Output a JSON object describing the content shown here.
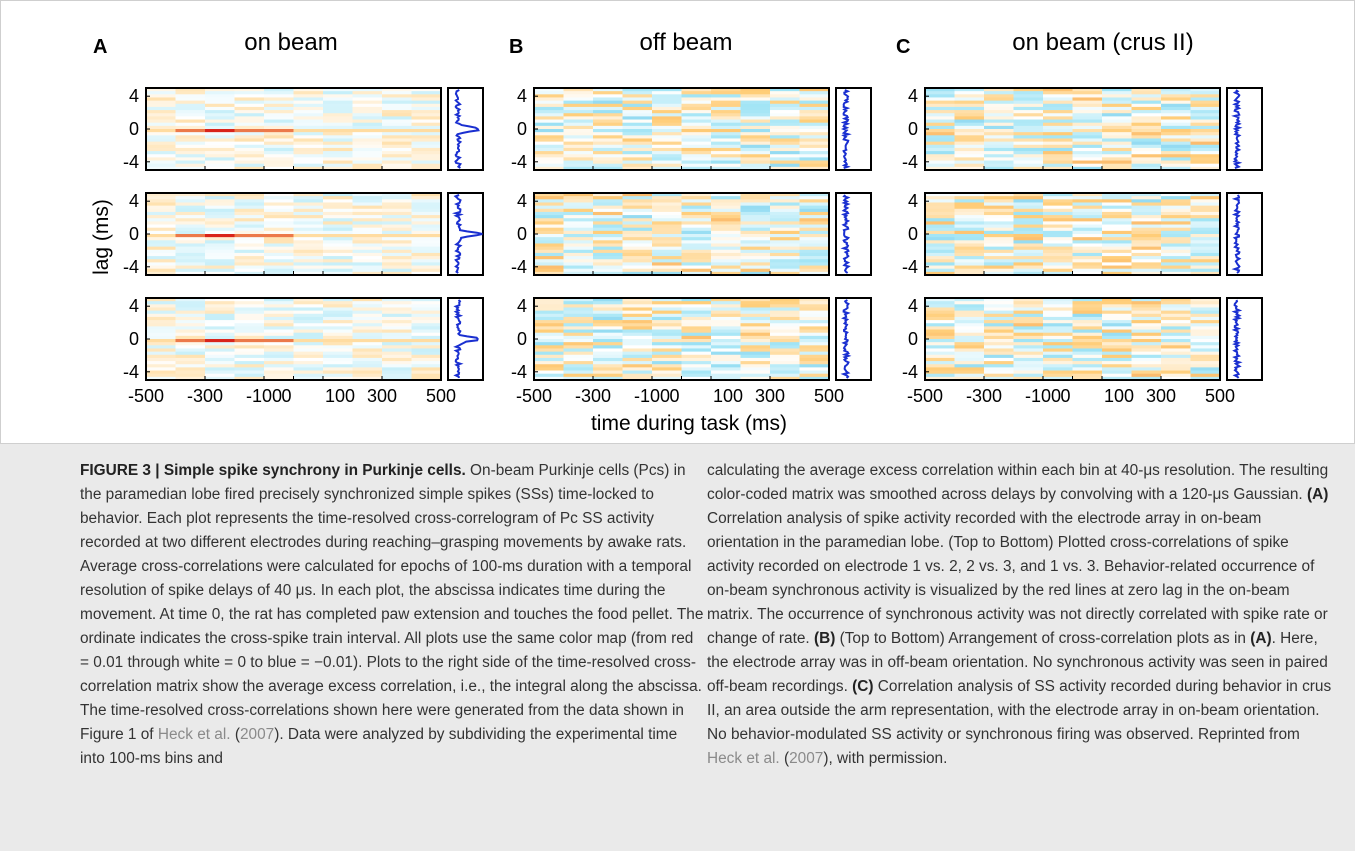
{
  "figure": {
    "panels": [
      {
        "letter": "A",
        "title": "on beam"
      },
      {
        "letter": "B",
        "title": "off beam"
      },
      {
        "letter": "C",
        "title": "on beam (crus II)"
      }
    ],
    "ylabel": "lag (ms)",
    "xlabel": "time during task (ms)",
    "y_tick_labels": [
      "4",
      "0",
      "-4"
    ],
    "x_tick_labels": [
      "-500",
      "-300",
      "-100",
      "0",
      "100",
      "300",
      "500"
    ],
    "colormap": {
      "red": "#d9241b",
      "white": "#ffffff",
      "blue": "#2a86d6"
    },
    "side_plot_color": "#1a2fd0"
  },
  "chart_data": {
    "type": "heatmap",
    "xlabel": "time during task (ms)",
    "ylabel": "lag (ms)",
    "xlim": [
      -500,
      500
    ],
    "ylim": [
      -5,
      5
    ],
    "x_ticks": [
      -500,
      -300,
      -100,
      0,
      100,
      300,
      500
    ],
    "y_ticks": [
      4,
      0,
      -4
    ],
    "color_scale": [
      -0.01,
      0.01
    ],
    "grid": "3 rows x 3 columns",
    "columns": [
      "on beam",
      "off beam",
      "on beam (crus II)"
    ],
    "zero_lag_peak": {
      "on beam": {
        "rows": [
          1,
          2,
          3
        ],
        "peak_time_range_ms": [
          -400,
          0
        ],
        "peak_value": 0.01
      },
      "off beam": {
        "rows": [],
        "peak_value": 0
      },
      "on beam (crus II)": {
        "rows": [],
        "peak_value": 0
      }
    }
  },
  "caption": {
    "label": "FIGURE 3 | Simple spike synchrony in Purkinje cells.",
    "left_body": " On-beam Purkinje cells (Pcs) in the paramedian lobe fired precisely synchronized simple spikes (SSs) time-locked to behavior. Each plot represents the time-resolved cross-correlogram of Pc SS activity recorded at two different electrodes during reaching–grasping movements by awake rats. Average cross-correlations were calculated for epochs of 100-ms duration with a temporal resolution of spike delays of 40 μs. In each plot, the abscissa indicates time during the movement. At time 0, the rat has completed paw extension and touches the food pellet. The ordinate indicates the cross-spike train interval. All plots use the same color map (from red = 0.01 through white = 0 to blue = −0.01). Plots to the right side of the time-resolved cross-correlation matrix show the average excess correlation, i.e., the integral along the abscissa. The time-resolved cross-correlations shown here were generated from the data shown in Figure 1 of ",
    "left_cite": "Heck et al.",
    "left_paren_open": " (",
    "left_cite_year": "2007",
    "left_tail": "). Data were analyzed by subdividing the experimental time into 100-ms bins and",
    "right_p1": "calculating the average excess correlation within each bin at 40-μs resolution. The resulting color-coded matrix was smoothed across delays by convolving with a 120-μs Gaussian. ",
    "label_A": "(A)",
    "right_A": " Correlation analysis of spike activity recorded with the electrode array in on-beam orientation in the paramedian lobe. (Top to Bottom) Plotted cross-correlations of spike activity recorded on electrode 1 vs. 2, 2 vs. 3, and 1 vs. 3. Behavior-related occurrence of on-beam synchronous activity is visualized by the red lines at zero lag in the on-beam matrix. The occurrence of synchronous activity was not directly correlated with spike rate or change of rate. ",
    "label_B": "(B)",
    "right_B1": " (Top to Bottom) Arrangement of cross-correlation plots as in ",
    "label_A2": "(A)",
    "right_B2": ". Here, the electrode array was in off-beam orientation. No synchronous activity was seen in paired off-beam recordings. ",
    "label_C": "(C)",
    "right_C": " Correlation analysis of SS activity recorded during behavior in crus II, an area outside the arm representation, with the electrode array in on-beam orientation. No behavior-modulated SS activity or synchronous firing was observed. Reprinted from ",
    "right_cite": "Heck et al.",
    "right_paren_open": " (",
    "right_cite_year": "2007",
    "right_tail": "), with permission."
  }
}
